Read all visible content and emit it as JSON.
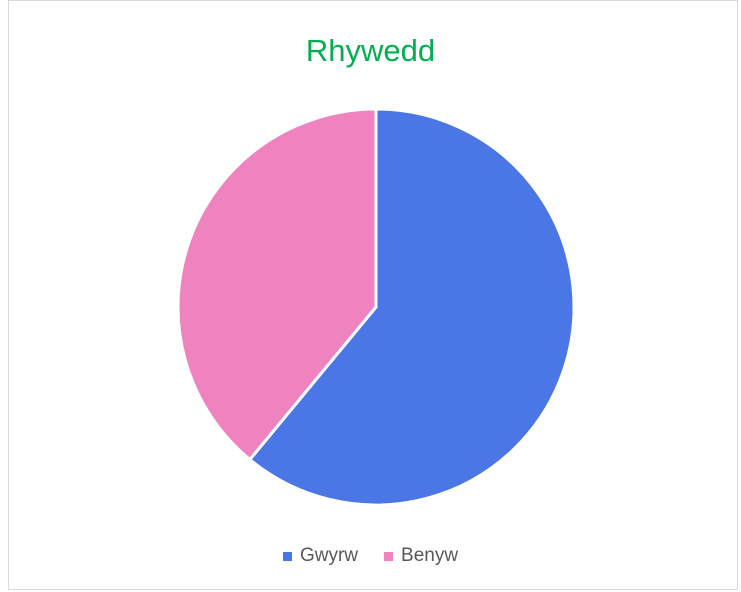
{
  "chart_data": {
    "type": "pie",
    "title": "Rhywedd",
    "categories": [
      "Gwyrw",
      "Benyw"
    ],
    "values": [
      61,
      39
    ],
    "colors": [
      "#4a76e6",
      "#ee83bf"
    ],
    "legend_position": "bottom"
  }
}
